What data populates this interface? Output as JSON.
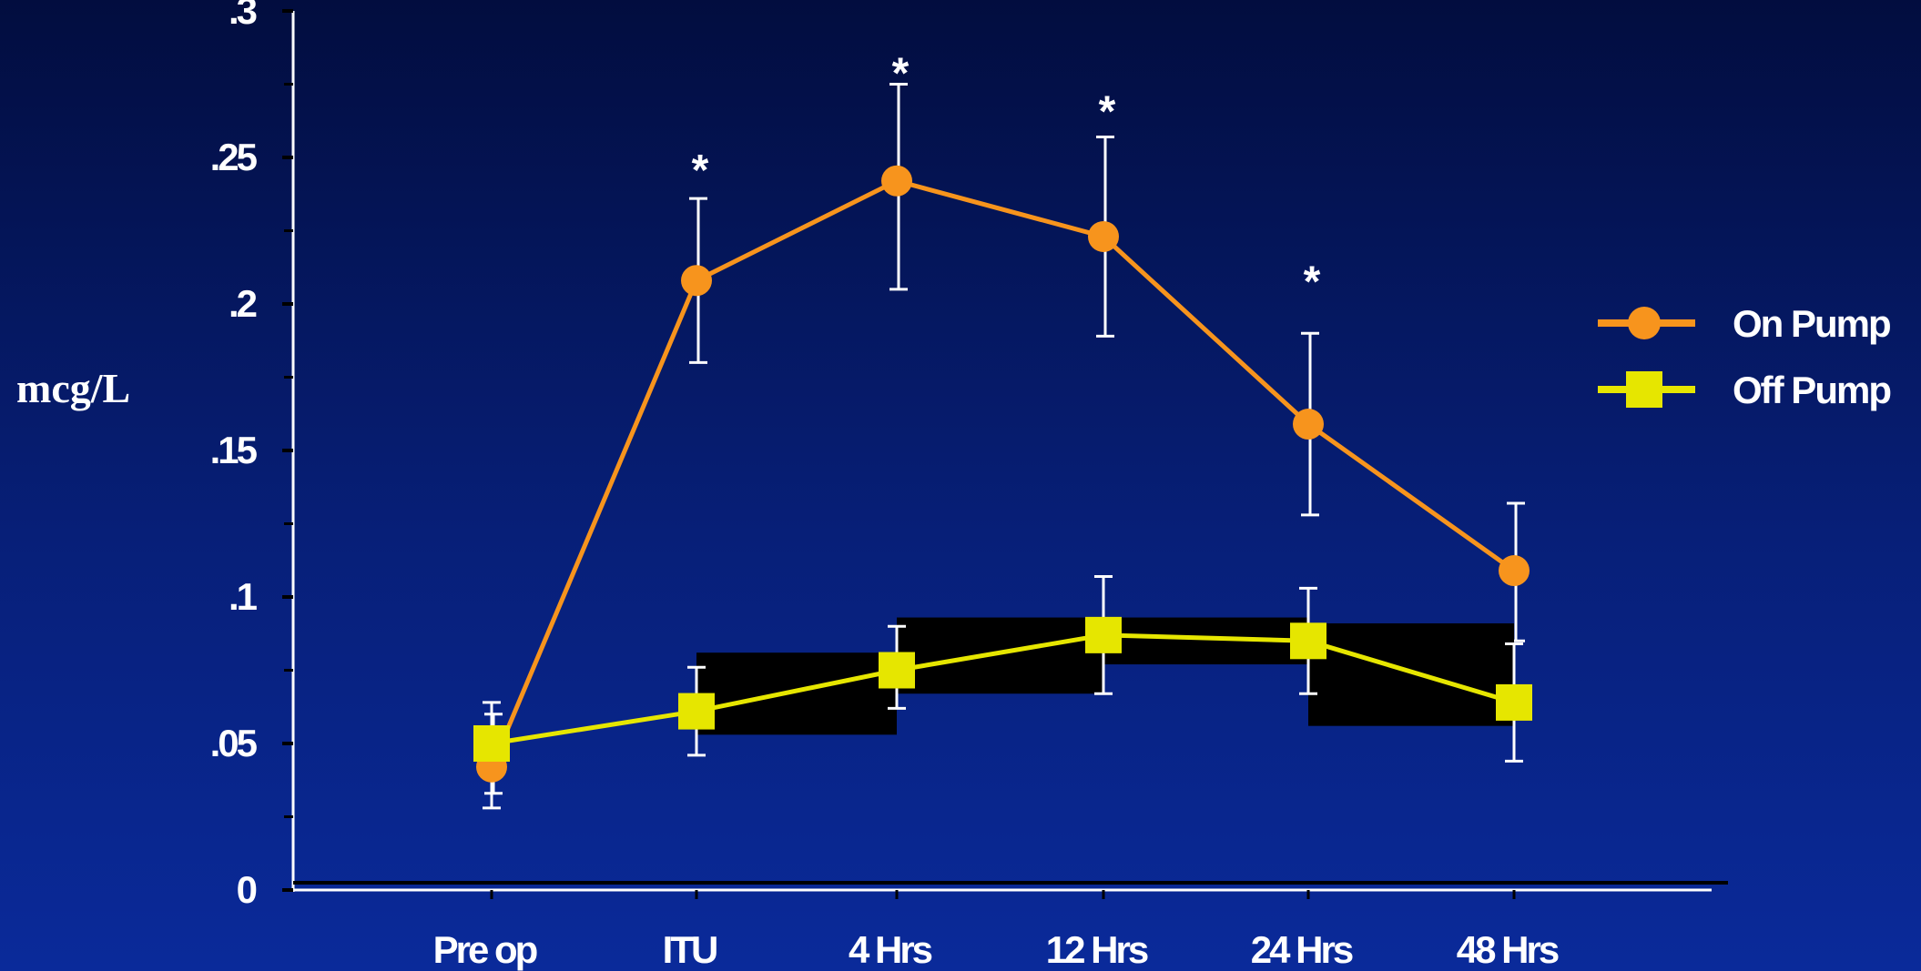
{
  "chart_data": {
    "type": "line",
    "title": "",
    "xlabel": "",
    "ylabel": "mcg/L",
    "categories": [
      "Pre op",
      "ITU",
      "4 Hrs",
      "12 Hrs",
      "24 Hrs",
      "48 Hrs"
    ],
    "ylim": [
      0,
      0.3
    ],
    "yticks": [
      0,
      0.05,
      0.1,
      0.15,
      0.2,
      0.25,
      0.3
    ],
    "ytick_labels": [
      "0",
      ".05",
      ".1",
      ".15",
      ".2",
      ".25",
      ".3"
    ],
    "grid": false,
    "legend_position": "right",
    "series": [
      {
        "name": "On Pump",
        "marker": "circle",
        "color": "#f7941d",
        "values": [
          0.042,
          0.208,
          0.242,
          0.223,
          0.159,
          0.109
        ],
        "error_low": [
          0.033,
          0.18,
          0.205,
          0.189,
          0.128,
          0.085
        ],
        "error_high": [
          0.06,
          0.236,
          0.275,
          0.257,
          0.19,
          0.132
        ]
      },
      {
        "name": "Off Pump",
        "marker": "square",
        "color": "#e6e600",
        "values": [
          0.05,
          0.061,
          0.075,
          0.087,
          0.085,
          0.064
        ],
        "error_low": [
          0.028,
          0.046,
          0.062,
          0.067,
          0.067,
          0.044
        ],
        "error_high": [
          0.064,
          0.076,
          0.09,
          0.107,
          0.103,
          0.084
        ]
      }
    ],
    "annotations": [
      {
        "text": "*",
        "category": "ITU",
        "y": 0.25
      },
      {
        "text": "*",
        "category": "4 Hrs",
        "y": 0.283
      },
      {
        "text": "*",
        "category": "12 Hrs",
        "y": 0.27
      },
      {
        "text": "*",
        "category": "24 Hrs",
        "y": 0.212
      }
    ]
  }
}
